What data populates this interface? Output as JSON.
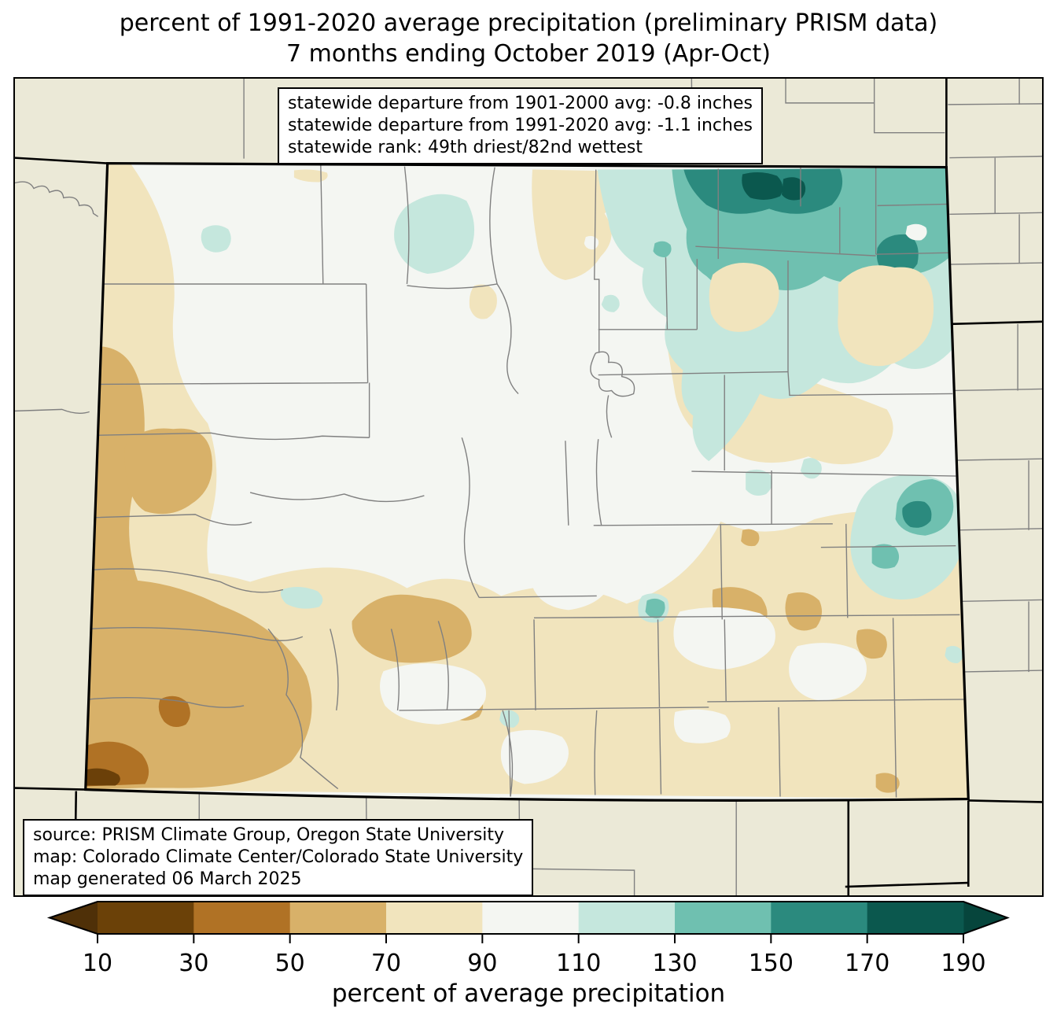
{
  "title": {
    "line1": "percent of 1991-2020 average precipitation (preliminary PRISM data)",
    "line2": "7 months ending October 2019 (Apr-Oct)"
  },
  "stats_box": {
    "line1": "statewide departure from 1901-2000 avg: -0.8 inches",
    "line2": "statewide departure from 1991-2020 avg: -1.1 inches",
    "line3": "statewide rank: 49th driest/82nd wettest"
  },
  "source_box": {
    "line1": "source: PRISM Climate Group, Oregon State University",
    "line2": "map: Colorado Climate Center/Colorado State University",
    "line3": "map generated 06 March 2025"
  },
  "colorbar": {
    "label": "percent of average precipitation",
    "ticks": [
      10,
      30,
      50,
      70,
      90,
      110,
      130,
      150,
      170,
      190
    ],
    "segment_colors": [
      "#6b4108",
      "#b07225",
      "#d8b169",
      "#f1e4bd",
      "#f4f6f2",
      "#c5e7dd",
      "#6fc0b0",
      "#2b8a7e",
      "#0b584e"
    ],
    "left_arrow_color": "#4f3008",
    "right_arrow_color": "#06453c"
  },
  "map": {
    "colors": {
      "outside": "#ebe9d7",
      "base": "#f4f6f2",
      "cream": "#f1e4bd",
      "tan": "#d8b169",
      "brown": "#b07225",
      "dark_brown": "#6b4009",
      "teal_pale": "#c5e7dd",
      "teal_medium": "#6fc0b0",
      "teal_dark": "#2b8a7e",
      "teal_darkest": "#0b584e",
      "county_line": "#808080",
      "state_border": "#000000"
    }
  }
}
